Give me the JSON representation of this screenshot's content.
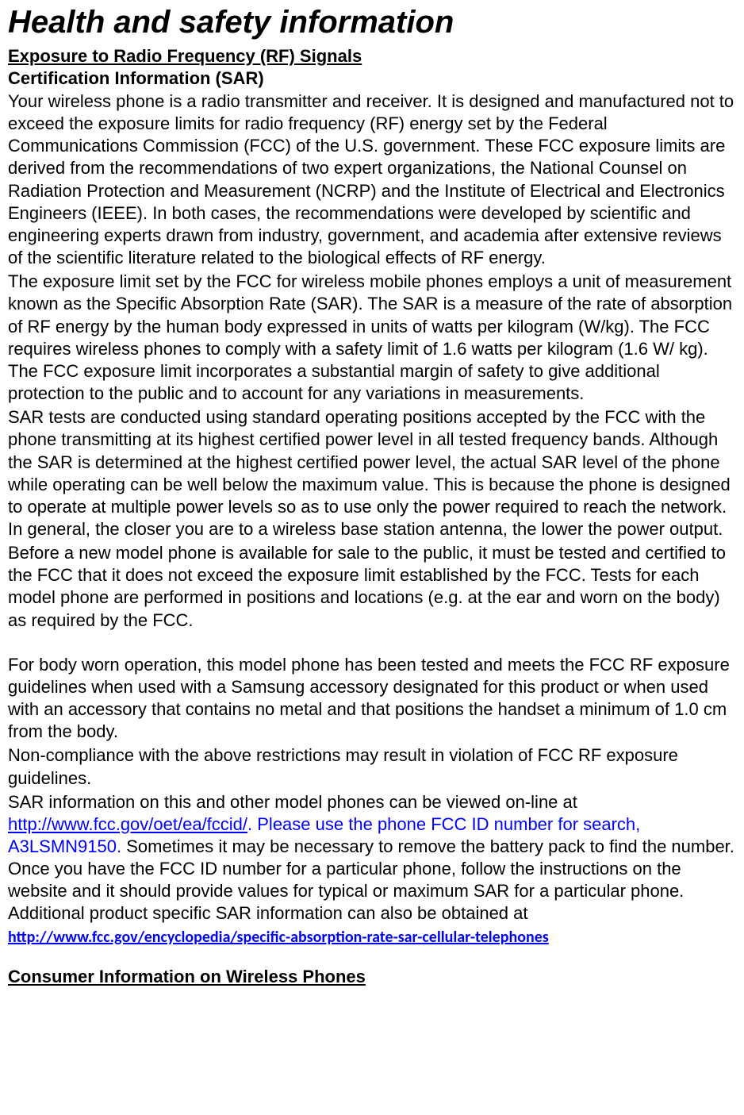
{
  "document": {
    "title": "Health and safety information",
    "heading1": "Exposure to Radio Frequency (RF) Signals",
    "heading2": "Certification Information (SAR)",
    "para1": "Your wireless phone is a radio transmitter and receiver. It is designed and manufactured not to exceed the exposure limits for radio frequency (RF) energy set by the Federal Communications Commission (FCC) of the U.S. government. These FCC exposure limits are derived from the recommendations of two expert organizations, the National Counsel on Radiation Protection and Measurement (NCRP) and the Institute of Electrical and Electronics Engineers (IEEE). In both cases, the recommendations were developed by scientific and engineering experts drawn from industry, government, and academia after extensive reviews of the scientific literature related to the biological effects of RF energy.",
    "para2": "The exposure limit set by the FCC for wireless mobile phones employs a unit of measurement known as the Specific Absorption Rate (SAR). The SAR is a measure of the rate of absorption of RF energy by the human body expressed in units of watts per kilogram (W/kg). The FCC requires wireless phones to comply with a safety limit of 1.6 watts per kilogram (1.6 W/ kg). The FCC exposure limit incorporates a substantial margin of safety to give additional protection to the public and to account for any variations in measurements.",
    "para3": "SAR tests are conducted using standard operating positions accepted by the FCC with the phone transmitting at its highest certified power level in all tested frequency bands. Although the SAR is determined at the highest certified power level, the actual SAR level of the phone while operating can be well below the maximum value. This is because the phone is designed to operate at multiple power levels so as to use only the power required to reach the network. In general, the closer you are to a wireless base station antenna, the lower the power output.",
    "para4": "Before a new model phone is available for sale to the public, it must be tested and certified to the FCC that it does not exceed the exposure limit established by the FCC. Tests for each model phone are performed in positions and locations (e.g. at the ear and worn on the body) as required by the FCC.",
    "para5": "For body worn operation, this model phone has been tested and meets the FCC RF exposure guidelines when used with a Samsung accessory designated for this product or when used with an accessory that contains no metal and that positions the handset a minimum of 1.0 cm from the body.",
    "para6": "Non-compliance with the above restrictions may result in violation of FCC RF exposure guidelines.",
    "para7_pre": "SAR information on this and other model phones can be viewed on-line at ",
    "link1": "http://www.fcc.gov/oet/ea/fccid/",
    "para7_blue": ". Please use the phone FCC ID number for search, A3LSMN9150.",
    "para7_post": " Sometimes it may be necessary to remove the battery pack to find the number. Once you have the FCC ID number for a particular phone, follow the instructions on the website and it should provide values for typical or maximum SAR for a particular phone. Additional product specific SAR information can also be obtained at ",
    "link2": "http://www.fcc.gov/encyclopedia/specific-absorption-rate-sar-cellular-telephones",
    "heading3": "Consumer Information on Wireless Phones",
    "colors": {
      "text": "#000000",
      "link": "#0000ff",
      "background": "#ffffff"
    },
    "font": {
      "family": "Arial",
      "title_size": 40,
      "body_size": 22,
      "link2_size": 20
    }
  }
}
